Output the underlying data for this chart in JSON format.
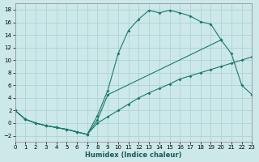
{
  "xlabel": "Humidex (Indice chaleur)",
  "bg_color": "#cce8e8",
  "grid_color": "#aacfcf",
  "line_color": "#1a7a6a",
  "xlim": [
    0,
    23
  ],
  "ylim": [
    -3,
    19
  ],
  "yticks": [
    -2,
    0,
    2,
    4,
    6,
    8,
    10,
    12,
    14,
    16,
    18
  ],
  "xticks": [
    0,
    1,
    2,
    3,
    4,
    5,
    6,
    7,
    8,
    9,
    10,
    11,
    12,
    13,
    14,
    15,
    16,
    17,
    18,
    19,
    20,
    21,
    22,
    23
  ],
  "curve1_x": [
    0,
    1,
    2,
    3,
    4,
    5,
    6,
    7,
    8,
    9,
    10,
    11,
    12,
    13,
    14,
    15,
    16,
    17,
    18,
    19,
    20
  ],
  "curve1_y": [
    2.0,
    0.6,
    0.0,
    -0.4,
    -0.7,
    -1.0,
    -1.4,
    -1.8,
    1.2,
    5.2,
    11.0,
    14.7,
    16.5,
    17.9,
    17.5,
    17.9,
    17.5,
    17.0,
    16.1,
    15.7,
    13.2
  ],
  "curve2_x": [
    0,
    1,
    2,
    3,
    4,
    5,
    6,
    7,
    8,
    9,
    20,
    21,
    22,
    23
  ],
  "curve2_y": [
    2.0,
    0.6,
    0.0,
    -0.4,
    -0.7,
    -1.0,
    -1.4,
    -1.8,
    0.5,
    4.5,
    13.2,
    11.0,
    6.0,
    4.5
  ],
  "curve3_x": [
    0,
    1,
    2,
    3,
    4,
    5,
    6,
    7,
    8,
    9,
    10,
    11,
    12,
    13,
    14,
    15,
    16,
    17,
    18,
    19,
    20,
    21,
    22,
    23
  ],
  "curve3_y": [
    2.0,
    0.6,
    0.0,
    -0.4,
    -0.7,
    -1.0,
    -1.4,
    -1.8,
    0.0,
    1.0,
    2.0,
    3.0,
    4.0,
    4.8,
    5.5,
    6.2,
    7.0,
    7.5,
    8.0,
    8.5,
    9.0,
    9.5,
    10.0,
    10.5
  ]
}
